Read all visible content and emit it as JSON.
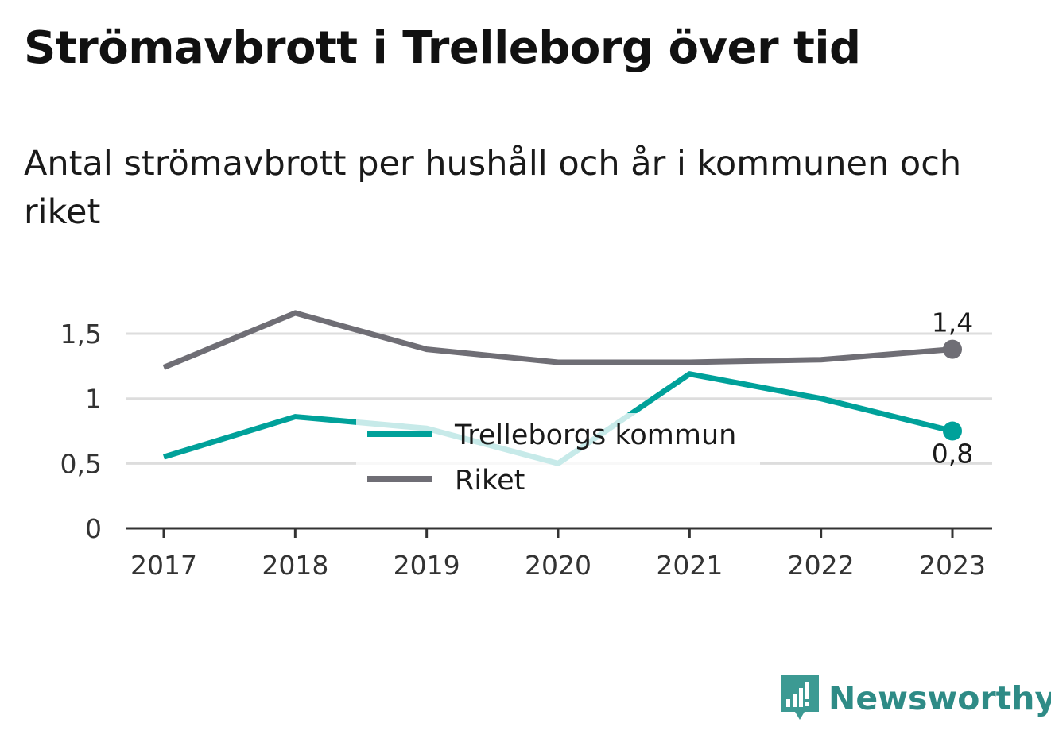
{
  "title": "Strömavbrott i Trelleborg över tid",
  "subtitle": "Antal strömavbrott per hushåll och år i kommunen och riket",
  "brand": {
    "name": "Newsworthy",
    "icon": "newsworthy-logo-icon",
    "color": "#3c9a93"
  },
  "chart_data": {
    "type": "line",
    "x": [
      "2017",
      "2018",
      "2019",
      "2020",
      "2021",
      "2022",
      "2023"
    ],
    "series": [
      {
        "name": "Trelleborgs kommun",
        "color": "#00a19a",
        "values": [
          0.55,
          0.86,
          0.77,
          0.5,
          1.19,
          1.0,
          0.75
        ],
        "end_label": "0,8"
      },
      {
        "name": "Riket",
        "color": "#6f6e75",
        "values": [
          1.24,
          1.66,
          1.38,
          1.28,
          1.28,
          1.3,
          1.38
        ],
        "end_label": "1,4"
      }
    ],
    "yticks": [
      {
        "value": 0,
        "label": "0"
      },
      {
        "value": 0.5,
        "label": "0,5"
      },
      {
        "value": 1,
        "label": "1"
      },
      {
        "value": 1.5,
        "label": "1,5"
      }
    ],
    "ylim": [
      0,
      1.7
    ],
    "grid": true,
    "legend": "center"
  }
}
